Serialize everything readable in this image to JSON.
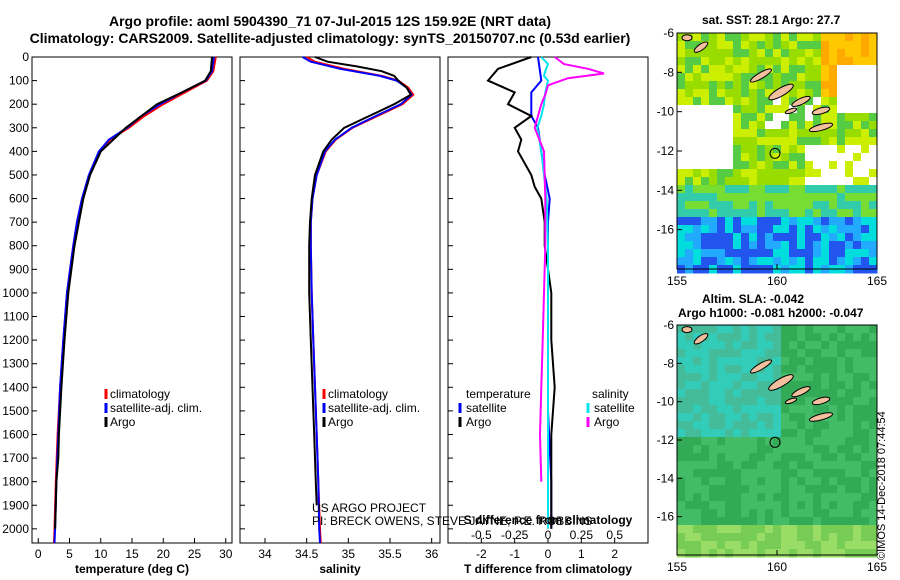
{
  "titles": {
    "line1": "Argo profile: aoml 5904390_71 07-Jul-2015 12S 159.92E (NRT data)",
    "line2": "Climatology: CARS2009. Satellite-adjusted climatology: synTS_20150707.nc (0.53d earlier)"
  },
  "maps": {
    "sst_title": "sat. SST: 28.1 Argo: 27.7",
    "sla_title1": "Altim. SLA: -0.042",
    "sla_title2": "Argo h1000: -0.081 h2000: -0.047",
    "lat_ticks": [
      "-6",
      "-8",
      "-10",
      "-12",
      "-14",
      "-16"
    ],
    "lon_ticks": [
      "155",
      "160",
      "165"
    ]
  },
  "stamp": "©IMOS 14-Dec-2018 07:44:54",
  "colors": {
    "climatology": "#ff0000",
    "satellite": "#0000ff",
    "argo": "#000000",
    "sal_satellite": "#00e5ee",
    "sal_climatology": "#ff00ff"
  },
  "chart_data": [
    {
      "type": "line",
      "xlabel": "temperature (deg C)",
      "ylabel": "",
      "xlim": [
        -1,
        31
      ],
      "ylim": [
        2060,
        0
      ],
      "xticks": [
        "0",
        "5",
        "10",
        "15",
        "20",
        "25",
        "30"
      ],
      "yticks": [
        "0",
        "100",
        "200",
        "300",
        "400",
        "500",
        "600",
        "700",
        "800",
        "900",
        "1000",
        "1100",
        "1200",
        "1300",
        "1400",
        "1500",
        "1600",
        "1700",
        "1800",
        "1900",
        "2000"
      ],
      "legend": [
        "climatology",
        "satellite-adj. clim.",
        "Argo"
      ],
      "legend_position": "lower-center",
      "series": [
        {
          "name": "climatology",
          "depth": [
            0,
            60,
            100,
            150,
            200,
            250,
            300,
            350,
            400,
            500,
            600,
            700,
            800,
            900,
            1000,
            1200,
            1400,
            1600,
            1800,
            2000,
            2060
          ],
          "values": [
            28.4,
            28.0,
            27.0,
            23.5,
            20.0,
            17.0,
            14.5,
            11.5,
            9.8,
            8.2,
            7.0,
            6.2,
            5.6,
            5.1,
            4.6,
            4.0,
            3.5,
            3.1,
            2.8,
            2.6,
            2.5
          ]
        },
        {
          "name": "satellite-adj. clim.",
          "depth": [
            0,
            60,
            100,
            150,
            200,
            250,
            300,
            350,
            400,
            500,
            600,
            700,
            800,
            900,
            1000,
            1200,
            1400,
            1600,
            1800,
            2000,
            2060
          ],
          "values": [
            28.1,
            27.8,
            26.8,
            23.0,
            19.5,
            16.5,
            14.2,
            11.3,
            9.7,
            8.1,
            7.0,
            6.2,
            5.6,
            5.1,
            4.6,
            4.0,
            3.5,
            3.2,
            2.9,
            2.7,
            2.6
          ]
        },
        {
          "name": "Argo",
          "depth": [
            0,
            60,
            100,
            150,
            200,
            250,
            300,
            350,
            400,
            500,
            600,
            700,
            800,
            900,
            1000,
            1200,
            1400,
            1600,
            1700,
            1800,
            1900,
            2000
          ],
          "values": [
            27.8,
            27.6,
            26.7,
            23.0,
            19.0,
            16.5,
            14.0,
            12.0,
            10.0,
            8.3,
            7.2,
            6.5,
            5.8,
            5.3,
            4.8,
            4.2,
            3.7,
            3.3,
            3.2,
            2.9,
            2.8,
            2.7
          ]
        }
      ]
    },
    {
      "type": "line",
      "xlabel": "salinity",
      "ylabel": "",
      "xlim": [
        33.7,
        36.1
      ],
      "ylim": [
        2060,
        0
      ],
      "xticks": [
        "34",
        "34.5",
        "35",
        "35.5",
        "36"
      ],
      "legend": [
        "climatology",
        "satellite-adj. clim.",
        "Argo"
      ],
      "legend_position": "lower-right",
      "annotation": [
        "US ARGO PROJECT",
        "PI: BRECK OWENS, STEVE JAYNE, P.E. ROBBINS"
      ],
      "series": [
        {
          "name": "climatology",
          "depth": [
            0,
            20,
            50,
            80,
            100,
            130,
            160,
            200,
            250,
            300,
            350,
            400,
            500,
            600,
            700,
            800,
            1000,
            1200,
            1400,
            1600,
            1800,
            2000,
            2060
          ],
          "values": [
            34.5,
            34.6,
            34.95,
            35.4,
            35.6,
            35.72,
            35.78,
            35.65,
            35.35,
            35.05,
            34.85,
            34.73,
            34.62,
            34.57,
            34.55,
            34.55,
            34.56,
            34.58,
            34.6,
            34.62,
            34.64,
            34.66,
            34.67
          ]
        },
        {
          "name": "satellite-adj. clim.",
          "depth": [
            0,
            20,
            50,
            80,
            100,
            130,
            160,
            200,
            250,
            300,
            350,
            400,
            500,
            600,
            700,
            800,
            1000,
            1200,
            1400,
            1600,
            1800,
            2000,
            2060
          ],
          "values": [
            34.45,
            34.55,
            34.9,
            35.38,
            35.58,
            35.7,
            35.76,
            35.63,
            35.33,
            35.04,
            34.84,
            34.72,
            34.62,
            34.57,
            34.55,
            34.55,
            34.56,
            34.58,
            34.6,
            34.62,
            34.64,
            34.65,
            34.66
          ]
        },
        {
          "name": "Argo",
          "depth": [
            0,
            20,
            40,
            60,
            80,
            100,
            130,
            160,
            200,
            250,
            300,
            350,
            400,
            500,
            600,
            700,
            800,
            1000,
            1200,
            1400,
            1600,
            1800,
            1900
          ],
          "values": [
            34.6,
            34.75,
            35.1,
            35.4,
            35.55,
            35.6,
            35.7,
            35.75,
            35.55,
            35.25,
            34.95,
            34.8,
            34.7,
            34.6,
            34.56,
            34.54,
            34.53,
            34.53,
            34.55,
            34.57,
            34.59,
            34.61,
            34.62
          ]
        }
      ]
    },
    {
      "type": "line",
      "xlabel": "T difference from climatology",
      "xlabel_top": "S difference from climatology",
      "ylabel": "",
      "xlim": [
        -3,
        3
      ],
      "xlim_top": [
        -0.75,
        0.75
      ],
      "ylim": [
        2060,
        0
      ],
      "xticks": [
        "-2",
        "-1",
        "0",
        "1",
        "2"
      ],
      "xticks_top": [
        "-0.5",
        "-0.25",
        "0",
        "0.25",
        "0.5"
      ],
      "legend": [
        "temperature",
        "satellite",
        "Argo",
        "salinity",
        "satellite",
        "Argo"
      ],
      "legend_position": "lower",
      "series": [
        {
          "name": "satellite",
          "quantity": "temperature",
          "depth": [
            0,
            100,
            150,
            200,
            250,
            300,
            400,
            500,
            600,
            700,
            800,
            1000,
            1200,
            1500,
            1800,
            2000
          ],
          "values": [
            -0.3,
            -0.2,
            -0.5,
            -0.5,
            -0.5,
            -0.3,
            -0.2,
            -0.1,
            0.05,
            0.0,
            0.0,
            0.0,
            0.0,
            0.0,
            0.1,
            0.1
          ]
        },
        {
          "name": "Argo",
          "quantity": "temperature",
          "depth": [
            0,
            50,
            100,
            150,
            200,
            250,
            300,
            350,
            400,
            450,
            500,
            550,
            600,
            700,
            800,
            1000,
            1200,
            1400,
            1600,
            1800,
            2000
          ],
          "values": [
            -0.5,
            -1.5,
            -1.8,
            -1.0,
            -1.2,
            -0.5,
            -1.0,
            -0.8,
            -0.9,
            -0.7,
            -0.5,
            -0.4,
            -0.2,
            -0.1,
            -0.1,
            0.1,
            0.1,
            0.2,
            0.1,
            0.1,
            0.1
          ]
        },
        {
          "name": "satellite",
          "quantity": "salinity",
          "depth": [
            0,
            30,
            60,
            80,
            100,
            150,
            200,
            250,
            300,
            400,
            500,
            600,
            800,
            1000,
            1500,
            2000
          ],
          "values": [
            -0.05,
            0.0,
            -0.02,
            -0.03,
            0.0,
            -0.02,
            -0.03,
            -0.05,
            -0.08,
            -0.05,
            -0.03,
            -0.01,
            0.0,
            0.0,
            0.0,
            0.0
          ]
        },
        {
          "name": "Argo",
          "quantity": "salinity",
          "depth": [
            0,
            30,
            50,
            70,
            90,
            120,
            160,
            200,
            300,
            400,
            600,
            800,
            1000,
            1200,
            1400,
            1600,
            1800
          ],
          "values": [
            0.05,
            0.12,
            0.3,
            0.42,
            0.15,
            0.0,
            -0.02,
            -0.05,
            -0.1,
            -0.03,
            -0.02,
            -0.02,
            -0.03,
            -0.04,
            -0.05,
            -0.06,
            -0.05
          ]
        }
      ]
    }
  ]
}
